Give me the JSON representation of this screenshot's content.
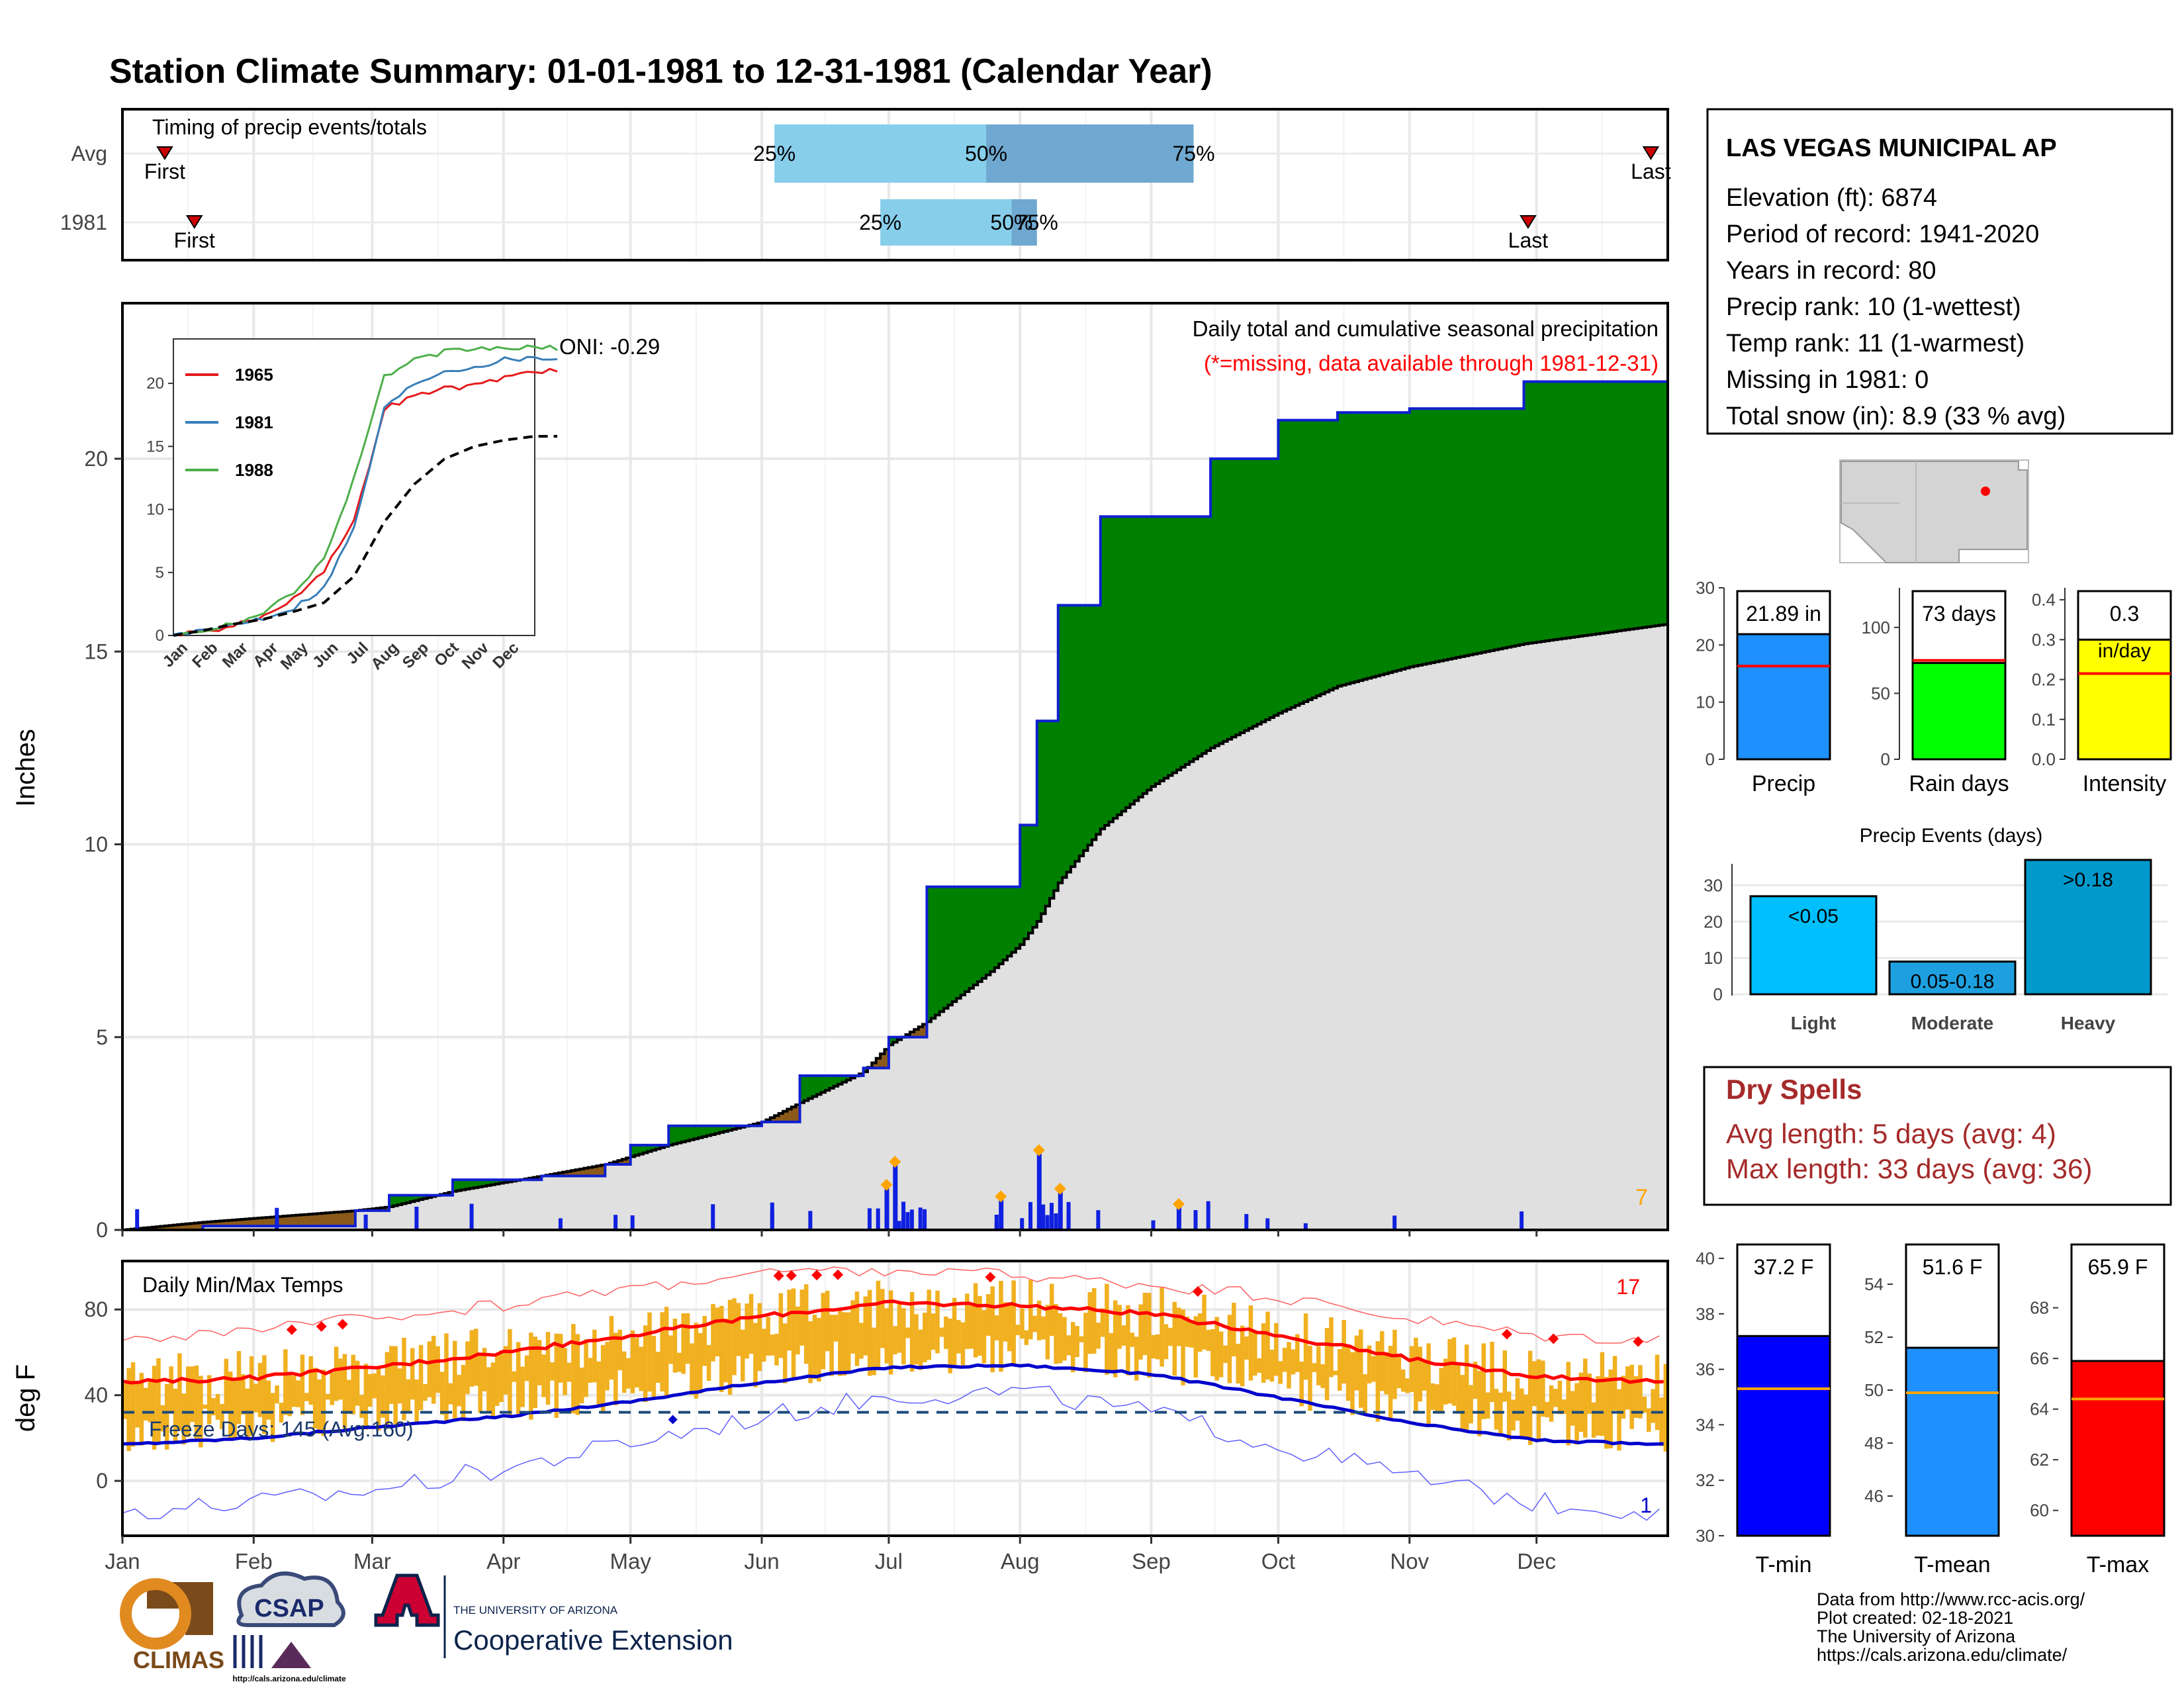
{
  "title": "Station Climate Summary: 01-01-1981 to 12-31-1981 (Calendar Year)",
  "months": [
    "Jan",
    "Feb",
    "Mar",
    "Apr",
    "May",
    "Jun",
    "Jul",
    "Aug",
    "Sep",
    "Oct",
    "Nov",
    "Dec"
  ],
  "colors": {
    "title": "#0a0a80",
    "cum_current": "#1020d0",
    "above_avg": "#008000",
    "below_avg": "#8b5a1a",
    "avg_area": "#e0e0e0",
    "daily_bar": "#1020e0",
    "temp_bar": "#f0b020",
    "tmax_line": "#ff0000",
    "tmin_line": "#0000cc",
    "dry_spell": "#a52a2a",
    "missing": "#ff0000",
    "onset": "#ffa500"
  },
  "timing": {
    "title": "Timing of precip events/totals",
    "rows": [
      {
        "label": "Avg",
        "first_label": "First",
        "first_date": "01-11",
        "last_label": "Last",
        "last_date": "12-28",
        "q25_label": "25%",
        "q25_date": "06-04",
        "q50_label": "50%",
        "q50_date": "07-24",
        "q75_label": "75%",
        "q75_date": "09-11"
      },
      {
        "label": "1981",
        "first_label": "First",
        "first_date": "01-18",
        "last_label": "Last",
        "last_date": "11-29",
        "q25_label": "25%",
        "q25_date": "06-29",
        "q50_label": "50%",
        "q50_date": "07-30",
        "q75_label": "75%",
        "q75_date": "08-05"
      }
    ]
  },
  "precip_panel": {
    "ylabel": "Inches",
    "yticks": [
      0,
      5,
      10,
      15,
      20
    ],
    "ylim": [
      0,
      24
    ],
    "legend_line1": "Daily total and cumulative seasonal precipitation",
    "legend_line2": "(*=missing, data available through 1981-12-31)",
    "oni_label": "ONI: -0.29",
    "corner_count": "7"
  },
  "inset": {
    "yticks": [
      0,
      5,
      10,
      15,
      20
    ],
    "xticks": [
      "Jan",
      "Feb",
      "Mar",
      "Apr",
      "May",
      "Jun",
      "Jul",
      "Aug",
      "Sep",
      "Oct",
      "Nov",
      "Dec"
    ],
    "series": [
      {
        "name": "1965",
        "color": "#e41a1c"
      },
      {
        "name": "1981",
        "color": "#377eb8"
      },
      {
        "name": "1988",
        "color": "#4daf4a"
      }
    ]
  },
  "temp_panel": {
    "ylabel": "deg F",
    "title": "Daily Min/Max Temps",
    "yticks": [
      0,
      40,
      80
    ],
    "ylim": [
      -25,
      102
    ],
    "freeze_label": "Freeze Days: 145 (Avg:160)",
    "freeze_line": 32,
    "hot_count": "17",
    "cold_count": "1"
  },
  "station": {
    "name": "LAS VEGAS MUNICIPAL AP",
    "lines": [
      "Elevation (ft): 6874",
      "Period of record: 1941-2020",
      "Years in record: 80",
      "Precip rank: 10 (1-wettest)",
      "Temp rank: 11 (1-warmest)",
      "Missing in 1981: 0",
      "Total snow (in): 8.9 (33 % avg)"
    ]
  },
  "summary_bars": [
    {
      "label": "Precip",
      "value_label": "21.89 in",
      "value": 21.89,
      "avg": 16.3,
      "max": 30,
      "ticks": [
        0,
        10,
        20,
        30
      ],
      "color": "#1e90ff"
    },
    {
      "label": "Rain days",
      "value_label": "73 days",
      "value": 73,
      "avg": 75,
      "max": 130,
      "ticks": [
        0,
        50,
        100
      ],
      "color": "#00ff00"
    },
    {
      "label": "Intensity",
      "value_label": "0.3",
      "value_label2": "in/day",
      "value": 0.3,
      "avg": 0.215,
      "max": 0.43,
      "ticks": [
        "0.0",
        "0.1",
        "0.2",
        "0.3",
        "0.4"
      ],
      "color": "#ffff00"
    }
  ],
  "events": {
    "title": "Precip Events (days)",
    "yticks": [
      0,
      10,
      20,
      30
    ],
    "ymax": 35,
    "bars": [
      {
        "label": "Light",
        "range": "<0.05",
        "value": 27,
        "color": "#00bfff"
      },
      {
        "label": "Moderate",
        "range": "0.05-0.18",
        "value": 9,
        "color": "#1ea0e0"
      },
      {
        "label": "Heavy",
        "range": ">0.18",
        "value": 37,
        "color": "#0099cc"
      }
    ]
  },
  "dry_spells": {
    "title": "Dry Spells",
    "line1": "Avg length: 5 days (avg: 4)",
    "line2": "Max length: 33 days (avg: 36)"
  },
  "temp_bars": [
    {
      "label": "T-min",
      "value_label": "37.2 F",
      "value": 37.2,
      "avg": 35.3,
      "min": 30,
      "max": 40.5,
      "ticks": [
        30,
        32,
        34,
        36,
        38,
        40
      ],
      "color": "#0000ff"
    },
    {
      "label": "T-mean",
      "value_label": "51.6 F",
      "value": 51.6,
      "avg": 49.9,
      "min": 44.5,
      "max": 55.5,
      "ticks": [
        46,
        48,
        50,
        52,
        54
      ],
      "color": "#1e90ff"
    },
    {
      "label": "T-max",
      "value_label": "65.9 F",
      "value": 65.9,
      "avg": 64.4,
      "min": 59,
      "max": 70.5,
      "ticks": [
        60,
        62,
        64,
        66,
        68
      ],
      "color": "#ff0000"
    }
  ],
  "logos": {
    "climas": "CLIMAS",
    "csap": "CSAP",
    "csap_url": "http://cals.arizona.edu/climate",
    "ua_small": "THE UNIVERSITY OF ARIZONA",
    "ua_big": "Cooperative Extension"
  },
  "credits": [
    "Data from http://www.rcc-acis.org/",
    "Plot created: 02-18-2021",
    "The University of Arizona",
    "https://cals.arizona.edu/climate/"
  ],
  "chart_data": [
    {
      "type": "area",
      "title": "Daily total and cumulative seasonal precipitation",
      "ylabel": "Inches",
      "ylim": [
        0,
        24
      ],
      "x": [
        "01-01",
        "01-20",
        "02-25",
        "03-05",
        "03-20",
        "04-10",
        "04-25",
        "05-01",
        "05-10",
        "06-01",
        "06-10",
        "06-25",
        "07-01",
        "07-10",
        "07-25",
        "08-01",
        "08-05",
        "08-10",
        "08-20",
        "09-01",
        "09-15",
        "10-01",
        "10-15",
        "11-01",
        "11-28",
        "12-31"
      ],
      "series": [
        {
          "name": "1981",
          "values": [
            0.0,
            0.1,
            0.5,
            0.9,
            1.3,
            1.4,
            1.7,
            2.2,
            2.7,
            2.8,
            4.0,
            4.2,
            5.0,
            8.9,
            8.9,
            10.5,
            13.2,
            16.2,
            18.5,
            18.5,
            20.0,
            21.0,
            21.2,
            21.3,
            22.0,
            22.0
          ]
        },
        {
          "name": "Avg",
          "values": [
            0.0,
            0.2,
            0.5,
            0.6,
            1.0,
            1.4,
            1.7,
            1.9,
            2.2,
            2.8,
            3.3,
            4.1,
            4.8,
            5.4,
            6.7,
            7.4,
            8.0,
            9.0,
            10.4,
            11.5,
            12.5,
            13.4,
            14.1,
            14.6,
            15.2,
            15.7
          ]
        }
      ],
      "daily_peaks": [
        {
          "x": "06-30",
          "value": 1.1
        },
        {
          "x": "07-02",
          "value": 1.7
        },
        {
          "x": "07-27",
          "value": 0.8
        },
        {
          "x": "08-05",
          "value": 2.0
        },
        {
          "x": "08-10",
          "value": 1.0
        },
        {
          "x": "09-07",
          "value": 0.6
        }
      ]
    },
    {
      "type": "line",
      "title": "Daily Min/Max Temps",
      "ylabel": "deg F",
      "ylim": [
        -25,
        102
      ],
      "x": [
        "01-01",
        "02-01",
        "03-01",
        "04-01",
        "05-01",
        "06-01",
        "07-01",
        "08-01",
        "09-01",
        "10-01",
        "11-01",
        "12-01",
        "12-31"
      ],
      "series": [
        {
          "name": "Avg max",
          "values": [
            46,
            48,
            53,
            60,
            68,
            77,
            83,
            82,
            78,
            68,
            57,
            49,
            46
          ]
        },
        {
          "name": "Avg min",
          "values": [
            17,
            20,
            25,
            30,
            37,
            46,
            53,
            54,
            50,
            39,
            27,
            19,
            17
          ]
        },
        {
          "name": "Record max",
          "values": [
            66,
            70,
            76,
            82,
            90,
            97,
            98,
            96,
            92,
            86,
            76,
            68,
            66
          ]
        },
        {
          "name": "Record min",
          "values": [
            -14,
            -10,
            -4,
            6,
            18,
            30,
            40,
            42,
            32,
            16,
            2,
            -10,
            -14
          ]
        }
      ]
    },
    {
      "type": "line",
      "title": "Inset cumulative precipitation",
      "x": [
        "Jan",
        "Feb",
        "Mar",
        "Apr",
        "May",
        "Jun",
        "Jul",
        "Aug",
        "Sep",
        "Oct",
        "Nov",
        "Dec",
        "Dec31"
      ],
      "ylim": [
        0,
        23
      ],
      "series": [
        {
          "name": "1965",
          "values": [
            0,
            0.3,
            0.8,
            1.5,
            3.0,
            5.2,
            9.0,
            18.0,
            19.0,
            19.6,
            19.8,
            20.5,
            21.0
          ]
        },
        {
          "name": "1981",
          "values": [
            0,
            0.3,
            0.9,
            1.4,
            2.2,
            3.8,
            8.5,
            18.0,
            20.0,
            21.0,
            21.3,
            21.9,
            22.0
          ]
        },
        {
          "name": "1988",
          "values": [
            0,
            0.4,
            1.0,
            1.8,
            3.5,
            6.0,
            12.5,
            20.5,
            21.8,
            22.5,
            22.7,
            22.8,
            22.8
          ]
        },
        {
          "name": "Avg",
          "values": [
            0,
            0.4,
            0.9,
            1.3,
            1.9,
            2.6,
            4.7,
            9.0,
            12.0,
            14.0,
            15.0,
            15.5,
            15.8
          ]
        }
      ]
    }
  ]
}
